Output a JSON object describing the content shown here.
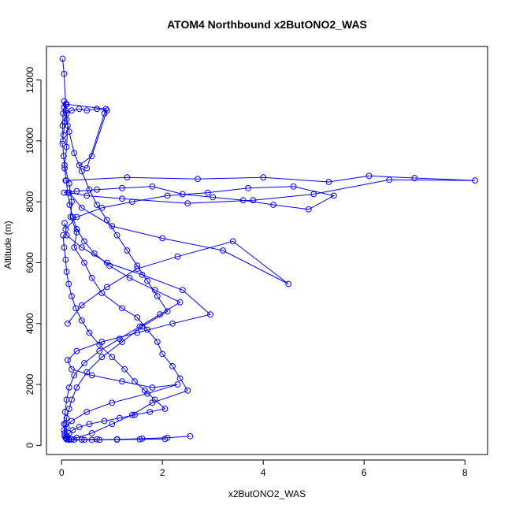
{
  "chart_data": {
    "type": "line",
    "title": "ATOM4 Northbound x2ButONO2_WAS",
    "xlabel": "x2ButONO2_WAS",
    "ylabel": "Altitude (m)",
    "xlim": [
      -0.3,
      8.45
    ],
    "ylim": [
      -300,
      13100
    ],
    "xticks": [
      0,
      2,
      4,
      6,
      8
    ],
    "yticks": [
      0,
      2000,
      4000,
      6000,
      8000,
      10000,
      12000
    ],
    "grid": false,
    "legend": "none",
    "marker": "open-circle",
    "colors": {
      "series": "#0000ff",
      "axis": "#000000",
      "background": "#ffffff"
    },
    "series": [
      {
        "x": [
          0.02,
          0.05,
          0.08,
          0.12,
          0.1,
          0.06,
          0.15,
          0.2,
          0.18,
          0.3,
          0.25,
          0.45,
          0.6,
          0.8,
          1.2,
          1.5,
          1.7,
          1.9,
          2.0,
          2.2,
          2.35,
          2.5,
          1.8,
          1.4,
          1.0,
          0.6,
          0.3,
          0.2,
          0.15,
          0.1
        ],
        "y": [
          12700,
          12200,
          11200,
          10500,
          9800,
          9200,
          8600,
          8000,
          7500,
          7000,
          6500,
          6000,
          5500,
          5000,
          4500,
          4200,
          3800,
          3400,
          3000,
          2600,
          2200,
          1800,
          1400,
          1000,
          700,
          400,
          250,
          200,
          180,
          200
        ]
      },
      {
        "x": [
          0.05,
          0.08,
          0.1,
          0.15,
          0.25,
          0.4,
          0.55,
          0.7,
          0.9,
          1.1,
          1.3,
          1.5,
          1.7,
          1.9,
          2.1,
          1.6,
          1.2,
          0.8,
          0.5,
          0.3,
          0.2,
          0.15,
          0.1,
          0.08,
          0.05,
          0.06,
          0.1,
          0.2,
          0.4,
          0.7
        ],
        "y": [
          11300,
          11000,
          10700,
          10300,
          9600,
          9000,
          8400,
          7900,
          7400,
          6900,
          6400,
          5900,
          5400,
          4900,
          4400,
          3900,
          3400,
          2900,
          2400,
          1900,
          1500,
          1200,
          900,
          700,
          500,
          300,
          220,
          200,
          190,
          200
        ]
      },
      {
        "x": [
          0.08,
          1.3,
          2.7,
          4.0,
          5.3,
          6.1,
          7.0,
          8.2,
          6.5,
          5.0,
          3.8,
          2.5,
          1.2,
          0.5,
          0.15,
          0.4,
          1.0,
          2.0,
          3.2,
          4.5,
          3.4,
          2.3,
          1.5,
          0.9,
          0.4,
          0.12
        ],
        "y": [
          8700,
          8800,
          8750,
          8800,
          8650,
          8850,
          8780,
          8700,
          8720,
          8250,
          8050,
          7950,
          8100,
          8200,
          8300,
          7800,
          7200,
          6800,
          6400,
          5300,
          6700,
          6200,
          5800,
          5200,
          4600,
          4000
        ]
      },
      {
        "x": [
          0.06,
          0.1,
          0.4,
          0.9,
          1.6,
          2.4,
          2.95,
          2.2,
          1.5,
          0.8,
          0.3,
          0.12,
          0.2,
          0.6,
          1.2,
          1.8,
          2.3,
          1.7,
          1.0,
          0.5,
          0.2,
          0.1,
          0.06,
          0.08,
          0.2,
          0.6,
          1.1,
          1.6,
          2.1,
          2.55
        ],
        "y": [
          7300,
          6900,
          6500,
          6000,
          5600,
          5100,
          4300,
          4000,
          3700,
          3400,
          3100,
          2800,
          2500,
          2300,
          2100,
          1900,
          2000,
          1700,
          1400,
          1100,
          800,
          600,
          400,
          250,
          200,
          180,
          200,
          220,
          250,
          300
        ]
      },
      {
        "x": [
          0.04,
          0.06,
          0.1,
          0.2,
          0.35,
          0.5,
          0.7,
          0.9,
          0.6,
          0.35,
          0.5,
          0.85,
          0.88,
          0.1,
          0.05,
          0.03,
          0.02,
          0.03
        ],
        "y": [
          10200,
          10600,
          10900,
          11000,
          11050,
          11000,
          11050,
          11000,
          9500,
          9200,
          9100,
          10900,
          11050,
          11200,
          11100,
          10900,
          10500,
          10000
        ]
      },
      {
        "x": [
          0.03,
          0.05,
          0.08,
          0.1,
          0.14,
          0.2,
          0.28,
          0.4,
          0.55,
          0.75,
          1.0,
          1.25,
          1.45,
          1.65,
          1.85,
          2.05,
          1.75,
          1.45,
          1.15,
          0.85,
          0.55,
          0.35,
          0.22,
          0.15,
          0.11,
          0.09,
          0.14,
          0.25,
          0.45,
          0.75,
          1.1,
          1.55,
          2.05
        ],
        "y": [
          6900,
          6500,
          6100,
          5700,
          5300,
          4900,
          4500,
          4100,
          3700,
          3300,
          2900,
          2500,
          2100,
          1800,
          1500,
          1200,
          1100,
          1000,
          900,
          800,
          700,
          600,
          500,
          400,
          300,
          220,
          200,
          190,
          180,
          180,
          190,
          200,
          210
        ]
      },
      {
        "x": [
          0.02,
          0.04,
          0.06,
          0.09,
          0.12,
          0.16,
          0.22,
          0.3,
          0.45,
          0.65,
          0.95,
          1.35,
          1.85,
          2.35,
          1.95,
          1.55,
          1.15,
          0.75,
          0.45,
          0.25,
          0.15,
          0.1,
          0.07,
          0.05
        ],
        "y": [
          9900,
          9500,
          9100,
          8700,
          8300,
          7900,
          7500,
          7100,
          6700,
          6300,
          5900,
          5500,
          5100,
          4700,
          4300,
          3900,
          3500,
          3100,
          2700,
          2300,
          1900,
          1500,
          1100,
          700
        ]
      },
      {
        "x": [
          0.05,
          0.3,
          0.7,
          1.2,
          1.8,
          2.4,
          3.0,
          3.6,
          4.2,
          4.9,
          5.4,
          4.6,
          3.7,
          2.9,
          2.1,
          1.4,
          0.8,
          0.3,
          0.08
        ],
        "y": [
          8300,
          8350,
          8400,
          8450,
          8500,
          8250,
          8150,
          8050,
          7900,
          7750,
          8200,
          8500,
          8450,
          8300,
          8200,
          8000,
          7800,
          7500,
          7100
        ]
      }
    ]
  }
}
